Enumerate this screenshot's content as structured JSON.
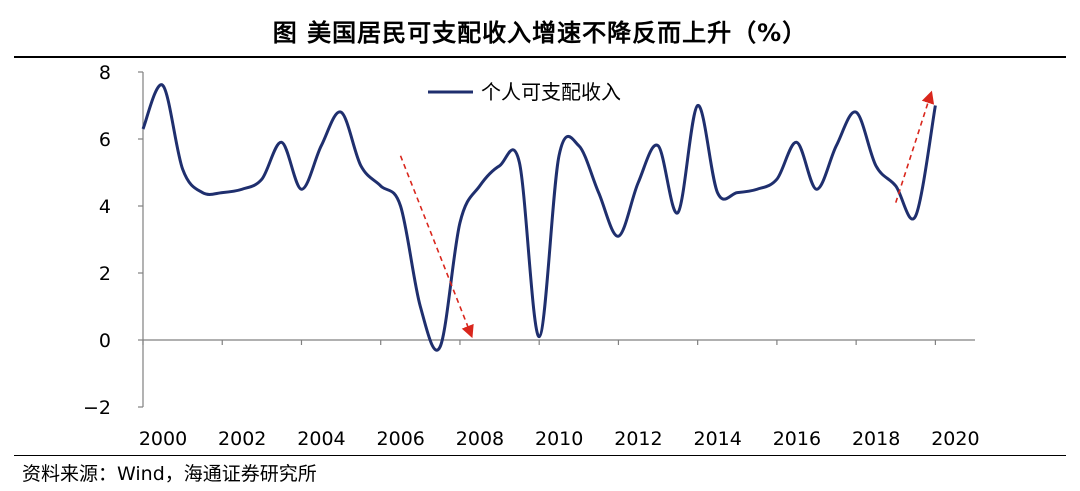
{
  "figure": {
    "title": "图  美国居民可支配收入增速不降反而上升（%）",
    "source": "资料来源：Wind，海通证券研究所"
  },
  "chart_data": {
    "type": "line",
    "title": "图  美国居民可支配收入增速不降反而上升（%）",
    "xlabel": "",
    "ylabel": "",
    "xlim": [
      2000,
      2021
    ],
    "ylim": [
      -2,
      8
    ],
    "xticks": [
      2000,
      2002,
      2004,
      2006,
      2008,
      2010,
      2012,
      2014,
      2016,
      2018,
      2020
    ],
    "xtick_labels": [
      "2000",
      "2002",
      "2004",
      "2006",
      "2008",
      "2010",
      "2012",
      "2014",
      "2016",
      "2018",
      "2020"
    ],
    "yticks": [
      -2,
      0,
      2,
      4,
      6,
      8
    ],
    "ytick_labels": [
      "−2",
      "0",
      "2",
      "4",
      "6",
      "8"
    ],
    "grid": false,
    "legend": "top-center",
    "series": [
      {
        "name": "个人可支配收入",
        "color": "#1f2f6e",
        "x": [
          2000,
          2000.5,
          2001,
          2001.5,
          2002,
          2002.5,
          2003,
          2003.5,
          2004,
          2004.5,
          2005,
          2005.5,
          2006,
          2006.5,
          2007,
          2007.5,
          2008,
          2008.5,
          2009,
          2009.5,
          2010,
          2010.5,
          2011,
          2011.5,
          2012,
          2012.5,
          2013,
          2013.5,
          2014,
          2014.5,
          2015,
          2015.5,
          2016,
          2016.5,
          2017,
          2017.5,
          2018,
          2018.5,
          2019,
          2019.5,
          2020
        ],
        "y": [
          6.3,
          7.6,
          5.1,
          4.4,
          4.4,
          4.5,
          4.8,
          5.9,
          4.5,
          5.8,
          6.8,
          5.2,
          4.6,
          4.0,
          1.0,
          -0.2,
          3.5,
          4.6,
          5.2,
          5.3,
          0.1,
          5.5,
          5.8,
          4.4,
          3.1,
          4.7,
          5.8,
          3.8,
          7.0,
          4.4,
          4.4,
          4.5,
          4.8,
          5.9,
          4.5,
          5.8,
          6.8,
          5.2,
          4.6,
          3.7,
          7.0
        ]
      }
    ],
    "annotations": [
      {
        "type": "arrow",
        "color": "#d9261c",
        "style": "dashed",
        "from": [
          2006.5,
          5.5
        ],
        "to": [
          2008.3,
          0.1
        ]
      },
      {
        "type": "arrow",
        "color": "#d9261c",
        "style": "dashed",
        "from": [
          2019.0,
          4.1
        ],
        "to": [
          2019.9,
          7.4
        ]
      }
    ]
  }
}
